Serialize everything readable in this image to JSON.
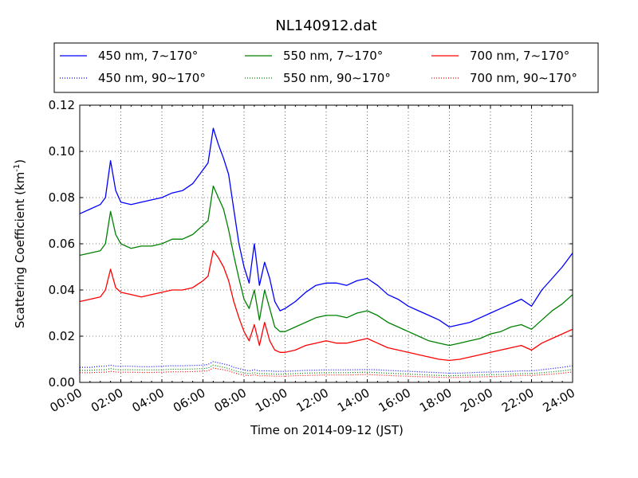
{
  "chart_data": {
    "type": "line",
    "title": "NL140912.dat",
    "xlabel": "Time on 2014-09-12 (JST)",
    "ylabel_main": "Scattering Coefficient (km",
    "ylabel_sup": "-1",
    "ylabel_close": ")",
    "xlim": [
      "00:00",
      "24:00"
    ],
    "ylim": [
      0.0,
      0.12
    ],
    "grid": true,
    "legend_position": "top",
    "x_tick_labels": [
      "00:00",
      "02:00",
      "04:00",
      "06:00",
      "08:00",
      "10:00",
      "12:00",
      "14:00",
      "16:00",
      "18:00",
      "20:00",
      "22:00",
      "24:00"
    ],
    "x_tick_hours": [
      0,
      2,
      4,
      6,
      8,
      10,
      12,
      14,
      16,
      18,
      20,
      22,
      24
    ],
    "y_ticks": [
      0.0,
      0.02,
      0.04,
      0.06,
      0.08,
      0.1,
      0.12
    ],
    "y_tick_labels": [
      "0.00",
      "0.02",
      "0.04",
      "0.06",
      "0.08",
      "0.10",
      "0.12"
    ],
    "x_hours": [
      0,
      0.5,
      1,
      1.25,
      1.5,
      1.75,
      2,
      2.5,
      3,
      3.5,
      4,
      4.5,
      5,
      5.5,
      6,
      6.25,
      6.5,
      6.75,
      7,
      7.25,
      7.5,
      7.75,
      8,
      8.25,
      8.5,
      8.75,
      9,
      9.25,
      9.5,
      9.75,
      10,
      10.5,
      11,
      11.5,
      12,
      12.5,
      13,
      13.5,
      14,
      14.5,
      15,
      15.5,
      16,
      16.5,
      17,
      17.5,
      18,
      18.5,
      19,
      19.5,
      20,
      20.5,
      21,
      21.5,
      22,
      22.5,
      23,
      23.5,
      24
    ],
    "series": [
      {
        "name": "450 nm, 7∼170°",
        "color": "#0000ff",
        "style": "solid",
        "values": [
          0.073,
          0.075,
          0.077,
          0.08,
          0.096,
          0.083,
          0.078,
          0.077,
          0.078,
          0.079,
          0.08,
          0.082,
          0.083,
          0.086,
          0.092,
          0.095,
          0.11,
          0.103,
          0.097,
          0.09,
          0.075,
          0.06,
          0.05,
          0.043,
          0.06,
          0.042,
          0.052,
          0.045,
          0.035,
          0.031,
          0.032,
          0.035,
          0.039,
          0.042,
          0.043,
          0.043,
          0.042,
          0.044,
          0.045,
          0.042,
          0.038,
          0.036,
          0.033,
          0.031,
          0.029,
          0.027,
          0.024,
          0.025,
          0.026,
          0.028,
          0.03,
          0.032,
          0.034,
          0.036,
          0.033,
          0.04,
          0.045,
          0.05,
          0.056
        ]
      },
      {
        "name": "550 nm, 7∼170°",
        "color": "#008000",
        "style": "solid",
        "values": [
          0.055,
          0.056,
          0.057,
          0.06,
          0.074,
          0.064,
          0.06,
          0.058,
          0.059,
          0.059,
          0.06,
          0.062,
          0.062,
          0.064,
          0.068,
          0.07,
          0.085,
          0.08,
          0.075,
          0.066,
          0.055,
          0.045,
          0.036,
          0.032,
          0.04,
          0.027,
          0.04,
          0.032,
          0.024,
          0.022,
          0.022,
          0.024,
          0.026,
          0.028,
          0.029,
          0.029,
          0.028,
          0.03,
          0.031,
          0.029,
          0.026,
          0.024,
          0.022,
          0.02,
          0.018,
          0.017,
          0.016,
          0.017,
          0.018,
          0.019,
          0.021,
          0.022,
          0.024,
          0.025,
          0.023,
          0.027,
          0.031,
          0.034,
          0.038
        ]
      },
      {
        "name": "700 nm, 7∼170°",
        "color": "#ff0000",
        "style": "solid",
        "values": [
          0.035,
          0.036,
          0.037,
          0.04,
          0.049,
          0.041,
          0.039,
          0.038,
          0.037,
          0.038,
          0.039,
          0.04,
          0.04,
          0.041,
          0.044,
          0.046,
          0.057,
          0.054,
          0.05,
          0.044,
          0.035,
          0.028,
          0.022,
          0.018,
          0.025,
          0.016,
          0.026,
          0.018,
          0.014,
          0.013,
          0.013,
          0.014,
          0.016,
          0.017,
          0.018,
          0.017,
          0.017,
          0.018,
          0.019,
          0.017,
          0.015,
          0.014,
          0.013,
          0.012,
          0.011,
          0.01,
          0.0095,
          0.01,
          0.011,
          0.012,
          0.013,
          0.014,
          0.015,
          0.016,
          0.014,
          0.017,
          0.019,
          0.021,
          0.023
        ]
      },
      {
        "name": "450 nm, 90∼170°",
        "color": "#0000ff",
        "style": "dotted",
        "values": [
          0.0065,
          0.0065,
          0.007,
          0.007,
          0.0075,
          0.007,
          0.007,
          0.007,
          0.0068,
          0.0068,
          0.007,
          0.0072,
          0.0072,
          0.0073,
          0.0075,
          0.0078,
          0.009,
          0.0085,
          0.008,
          0.0075,
          0.0065,
          0.006,
          0.0055,
          0.005,
          0.0055,
          0.005,
          0.005,
          0.005,
          0.0048,
          0.0048,
          0.0048,
          0.005,
          0.0052,
          0.0053,
          0.0054,
          0.0054,
          0.0054,
          0.0055,
          0.0056,
          0.0054,
          0.0052,
          0.005,
          0.0048,
          0.0046,
          0.0044,
          0.0042,
          0.004,
          0.004,
          0.0042,
          0.0044,
          0.0045,
          0.0046,
          0.0048,
          0.005,
          0.005,
          0.0055,
          0.006,
          0.0065,
          0.0072
        ]
      },
      {
        "name": "550 nm, 90∼170°",
        "color": "#008000",
        "style": "dotted",
        "values": [
          0.0052,
          0.0052,
          0.0055,
          0.0055,
          0.006,
          0.0056,
          0.0055,
          0.0055,
          0.0054,
          0.0054,
          0.0055,
          0.0057,
          0.0057,
          0.0058,
          0.006,
          0.0062,
          0.0075,
          0.007,
          0.0066,
          0.006,
          0.0052,
          0.0046,
          0.0042,
          0.0038,
          0.0042,
          0.0038,
          0.0038,
          0.0037,
          0.0036,
          0.0036,
          0.0036,
          0.0038,
          0.004,
          0.0041,
          0.0042,
          0.0042,
          0.0042,
          0.0043,
          0.0044,
          0.0042,
          0.004,
          0.0038,
          0.0036,
          0.0034,
          0.0032,
          0.003,
          0.0029,
          0.003,
          0.0031,
          0.0032,
          0.0033,
          0.0034,
          0.0036,
          0.0038,
          0.0038,
          0.0042,
          0.0046,
          0.005,
          0.0056
        ]
      },
      {
        "name": "700 nm, 90∼170°",
        "color": "#ff0000",
        "style": "dotted",
        "values": [
          0.0042,
          0.0042,
          0.0044,
          0.0044,
          0.0048,
          0.0045,
          0.0044,
          0.0044,
          0.0043,
          0.0043,
          0.0044,
          0.0046,
          0.0046,
          0.0047,
          0.0049,
          0.005,
          0.0062,
          0.0058,
          0.0055,
          0.005,
          0.0042,
          0.0036,
          0.0032,
          0.0029,
          0.0033,
          0.0028,
          0.0029,
          0.0028,
          0.0027,
          0.0027,
          0.0027,
          0.0029,
          0.003,
          0.0031,
          0.0032,
          0.0032,
          0.0032,
          0.0033,
          0.0034,
          0.0032,
          0.003,
          0.0028,
          0.0027,
          0.0025,
          0.0024,
          0.0022,
          0.0021,
          0.0022,
          0.0023,
          0.0024,
          0.0025,
          0.0026,
          0.0028,
          0.003,
          0.003,
          0.0033,
          0.0036,
          0.004,
          0.0045
        ]
      }
    ],
    "legend_order": [
      0,
      1,
      2,
      3,
      4,
      5
    ]
  }
}
